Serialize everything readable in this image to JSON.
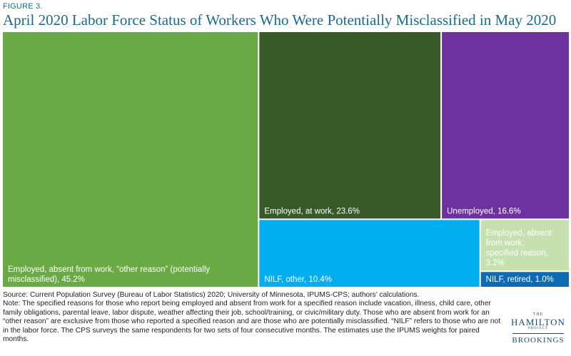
{
  "figure_label": "FIGURE 3.",
  "notes": {
    "source": "Source: Current Population Survey (Bureau of Labor Statistics) 2020; University of Minnesota, IPUMS-CPS; authors’ calculations.",
    "note": "Note: The specified reasons for those who report being employed and absent from work for a specified reason include vacation, illness, child care, other family obligations, parental leave, labor dispute, weather affecting their job, school/training, or civic/military duty. Those who are absent from work for an “other reason” are exclusive from those who reported a specified reason and are those who are potentially misclassified. “NILF” refers to those who are not in the labor force. The CPS surveys the same respondents for two sets of four consecutive months. The estimates use the IPUMS weights for paired months."
  },
  "logo": {
    "the": "THE",
    "hamilton": "HAMILTON",
    "project": "PROJECT",
    "brookings": "BROOKINGS"
  },
  "chart_data": {
    "type": "treemap",
    "title": "April 2020 Labor Force Status of Workers Who Were Potentially Misclassified in May 2020",
    "unit": "%",
    "tiles": [
      {
        "label": "Employed, absent from work, “other reason” (potentially misclassified), 45.2%",
        "lines": [
          "Employed, absent from work, “other reason” (potentially",
          "misclassified), 45.2%"
        ],
        "value": 45.2,
        "color": "#6aaa45"
      },
      {
        "label": "Employed, at work, 23.6%",
        "lines": [
          "Employed, at work, 23.6%"
        ],
        "value": 23.6,
        "color": "#385a28"
      },
      {
        "label": "Unemployed, 16.6%",
        "lines": [
          "Unemployed, 16.6%"
        ],
        "value": 16.6,
        "color": "#6e32a0"
      },
      {
        "label": "NILF, other, 10.4%",
        "lines": [
          "NILF, other, 10.4%"
        ],
        "value": 10.4,
        "color": "#00aeef"
      },
      {
        "label": "Employed, absent from work, specified reason, 3.2%",
        "lines": [
          "Employed, absent",
          "from work,",
          "specified reason,",
          "3.2%"
        ],
        "value": 3.2,
        "color": "#c6e0b0"
      },
      {
        "label": "NILF, retired, 1.0%",
        "lines": [
          "NILF, retired, 1.0%"
        ],
        "value": 1.0,
        "color": "#0d6bb5"
      }
    ]
  }
}
